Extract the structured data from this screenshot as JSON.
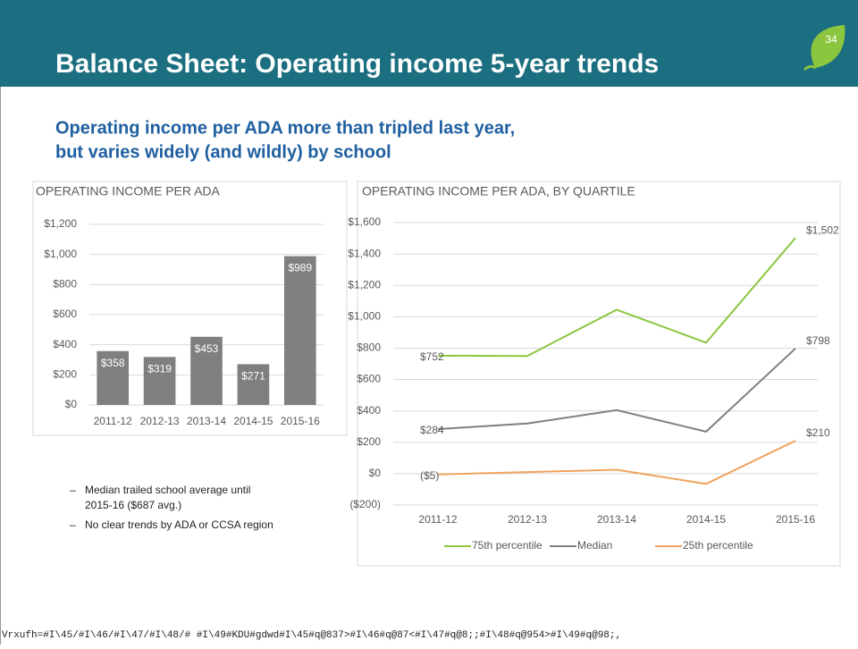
{
  "header": {
    "title": "Balance Sheet: Operating income 5-year trends",
    "page_number": "34"
  },
  "subtitle": [
    "Operating income per ADA more than tripled last year,",
    "but varies widely (and wildly) by school"
  ],
  "chart_data": [
    {
      "type": "bar",
      "title": "OPERATING INCOME PER ADA",
      "categories": [
        "2011-12",
        "2012-13",
        "2013-14",
        "2014-15",
        "2015-16"
      ],
      "values": [
        358,
        319,
        453,
        271,
        989
      ],
      "value_labels": [
        "$358",
        "$319",
        "$453",
        "$271",
        "$989"
      ],
      "color": "#7f7f7f",
      "ylim": [
        0,
        1200
      ],
      "yticks": [
        {
          "value": 0,
          "label": "$0"
        },
        {
          "value": 200,
          "label": "$200"
        },
        {
          "value": 400,
          "label": "$400"
        },
        {
          "value": 600,
          "label": "$600"
        },
        {
          "value": 800,
          "label": "$800"
        },
        {
          "value": 1000,
          "label": "$1,000"
        },
        {
          "value": 1200,
          "label": "$1,200"
        }
      ],
      "grid": true
    },
    {
      "type": "line",
      "title": "OPERATING INCOME PER ADA, BY QUARTILE",
      "categories": [
        "2011-12",
        "2012-13",
        "2013-14",
        "2014-15",
        "2015-16"
      ],
      "series": [
        {
          "name": "75th percentile",
          "color": "#8cc63f",
          "values": [
            752,
            750,
            1045,
            835,
            1502
          ],
          "value_labels": [
            "$752",
            null,
            null,
            null,
            "$1,502"
          ]
        },
        {
          "name": "Median",
          "color": "#7f7f7f",
          "values": [
            284,
            320,
            405,
            268,
            798
          ],
          "value_labels": [
            "$284",
            null,
            null,
            null,
            "$798"
          ]
        },
        {
          "name": "25th percentile",
          "color": "#f0a35e",
          "values": [
            -5,
            10,
            25,
            -65,
            210
          ],
          "value_labels": [
            "($5)",
            null,
            null,
            null,
            "$210"
          ]
        }
      ],
      "ylim": [
        -200,
        1600
      ],
      "yticks": [
        {
          "value": -200,
          "label": "($200)"
        },
        {
          "value": 0,
          "label": "$0"
        },
        {
          "value": 200,
          "label": "$200"
        },
        {
          "value": 400,
          "label": "$400"
        },
        {
          "value": 600,
          "label": "$600"
        },
        {
          "value": 800,
          "label": "$800"
        },
        {
          "value": 1000,
          "label": "$1,000"
        },
        {
          "value": 1200,
          "label": "$1,200"
        },
        {
          "value": 1400,
          "label": "$1,400"
        },
        {
          "value": 1600,
          "label": "$1,600"
        }
      ],
      "grid": true,
      "legend": "bottom"
    }
  ],
  "bullets": [
    "Median trailed school average until",
    "2015-16 ($687 avg.)",
    "No clear trends by ADA or CCSA region"
  ],
  "footer": "Vrxufh=#I\\45/#I\\46/#I\\47/#I\\48/# #I\\49#KDU#gdwd#I\\45#q@837>#I\\46#q@87<#I\\47#q@8;;#I\\48#q@954>#I\\49#q@98;,"
}
